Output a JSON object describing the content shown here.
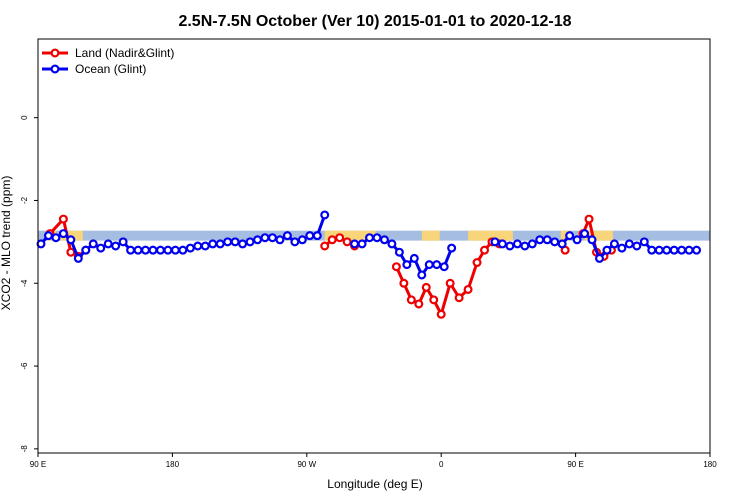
{
  "chart_data": {
    "type": "line",
    "title": "2.5N-7.5N October (Ver 10)   2015-01-01 to 2020-12-18",
    "xlabel": "Longitude (deg E)",
    "ylabel": "XCO2 - MLO trend (ppm)",
    "x_range_deg_east": [
      90,
      540
    ],
    "ylim": [
      -8.1,
      1.9
    ],
    "grid": false,
    "legend_position": "top-left",
    "x_ticks": [
      {
        "value": 90,
        "label": "90 E"
      },
      {
        "value": 180,
        "label": "180"
      },
      {
        "value": 270,
        "label": "90 W"
      },
      {
        "value": 360,
        "label": "0"
      },
      {
        "value": 450,
        "label": "90 E"
      },
      {
        "value": 540,
        "label": "180"
      }
    ],
    "y_ticks": [
      {
        "value": 0,
        "label": "0"
      },
      {
        "value": -2,
        "label": "-2"
      },
      {
        "value": -4,
        "label": "-4"
      },
      {
        "value": -6,
        "label": "-6"
      },
      {
        "value": -8,
        "label": "-8"
      }
    ],
    "land_mask_band": {
      "y_top": -2.73,
      "y_bottom": -2.97,
      "ocean_color": "#a5bde0",
      "land_color": "#f8d47a",
      "land_x_ranges": [
        [
          97,
          102
        ],
        [
          105,
          120
        ],
        [
          282,
          316
        ],
        [
          347,
          359
        ],
        [
          378,
          408
        ],
        [
          440,
          446
        ],
        [
          456,
          475
        ]
      ]
    },
    "series": [
      {
        "name": "Land (Nadir&Glint)",
        "color": "#ee0000",
        "segments": [
          [
            [
              98,
              -2.8
            ],
            [
              107,
              -2.45
            ],
            [
              112,
              -3.25
            ],
            [
              117,
              -3.35
            ],
            [
              122,
              -3.2
            ]
          ],
          [
            [
              282,
              -3.1
            ],
            [
              287,
              -2.95
            ],
            [
              292,
              -2.9
            ],
            [
              297,
              -3.0
            ],
            [
              302,
              -3.1
            ]
          ],
          [
            [
              330,
              -3.6
            ],
            [
              335,
              -4.0
            ],
            [
              340,
              -4.4
            ],
            [
              345,
              -4.5
            ],
            [
              350,
              -4.1
            ],
            [
              355,
              -4.4
            ],
            [
              360,
              -4.75
            ],
            [
              366,
              -4.0
            ],
            [
              372,
              -4.35
            ],
            [
              378,
              -4.15
            ],
            [
              384,
              -3.5
            ],
            [
              389,
              -3.2
            ],
            [
              394,
              -3.0
            ],
            [
              399,
              -3.05
            ]
          ],
          [
            [
              443,
              -3.2
            ]
          ],
          [
            [
              455,
              -2.8
            ],
            [
              459,
              -2.45
            ],
            [
              464,
              -3.25
            ],
            [
              469,
              -3.35
            ],
            [
              474,
              -3.2
            ]
          ]
        ]
      },
      {
        "name": "Ocean (Glint)",
        "color": "#0000ee",
        "segments": [
          [
            [
              92,
              -3.05
            ],
            [
              97,
              -2.85
            ],
            [
              102,
              -2.9
            ],
            [
              107,
              -2.8
            ],
            [
              112,
              -2.95
            ],
            [
              117,
              -3.4
            ],
            [
              122,
              -3.2
            ],
            [
              127,
              -3.05
            ],
            [
              132,
              -3.15
            ],
            [
              137,
              -3.05
            ],
            [
              142,
              -3.1
            ],
            [
              147,
              -3.0
            ],
            [
              152,
              -3.2
            ],
            [
              157,
              -3.2
            ],
            [
              162,
              -3.2
            ],
            [
              167,
              -3.2
            ],
            [
              172,
              -3.2
            ],
            [
              177,
              -3.2
            ],
            [
              182,
              -3.2
            ],
            [
              187,
              -3.2
            ],
            [
              192,
              -3.15
            ],
            [
              197,
              -3.1
            ],
            [
              202,
              -3.1
            ],
            [
              207,
              -3.05
            ],
            [
              212,
              -3.05
            ],
            [
              217,
              -3.0
            ],
            [
              222,
              -3.0
            ],
            [
              227,
              -3.05
            ],
            [
              232,
              -3.0
            ],
            [
              237,
              -2.95
            ],
            [
              242,
              -2.9
            ],
            [
              247,
              -2.9
            ],
            [
              252,
              -2.95
            ],
            [
              257,
              -2.85
            ],
            [
              262,
              -3.0
            ],
            [
              267,
              -2.95
            ],
            [
              272,
              -2.85
            ],
            [
              277,
              -2.85
            ],
            [
              282,
              -2.35
            ]
          ],
          [
            [
              302,
              -3.05
            ],
            [
              307,
              -3.05
            ],
            [
              312,
              -2.9
            ],
            [
              317,
              -2.9
            ],
            [
              322,
              -2.95
            ],
            [
              327,
              -3.05
            ],
            [
              332,
              -3.25
            ],
            [
              337,
              -3.55
            ],
            [
              342,
              -3.4
            ],
            [
              347,
              -3.8
            ],
            [
              352,
              -3.55
            ],
            [
              357,
              -3.55
            ],
            [
              362,
              -3.6
            ],
            [
              367,
              -3.15
            ]
          ],
          [
            [
              396,
              -3.0
            ],
            [
              401,
              -3.05
            ],
            [
              406,
              -3.1
            ],
            [
              411,
              -3.05
            ],
            [
              416,
              -3.1
            ],
            [
              421,
              -3.05
            ],
            [
              426,
              -2.95
            ],
            [
              431,
              -2.95
            ],
            [
              436,
              -3.0
            ],
            [
              441,
              -3.05
            ],
            [
              446,
              -2.85
            ],
            [
              451,
              -2.95
            ],
            [
              456,
              -2.8
            ],
            [
              461,
              -2.95
            ],
            [
              466,
              -3.4
            ],
            [
              471,
              -3.2
            ],
            [
              476,
              -3.05
            ],
            [
              481,
              -3.15
            ],
            [
              486,
              -3.05
            ],
            [
              491,
              -3.1
            ],
            [
              496,
              -3.0
            ],
            [
              501,
              -3.2
            ],
            [
              506,
              -3.2
            ],
            [
              511,
              -3.2
            ],
            [
              516,
              -3.2
            ],
            [
              521,
              -3.2
            ],
            [
              526,
              -3.2
            ],
            [
              531,
              -3.2
            ]
          ]
        ]
      }
    ]
  }
}
